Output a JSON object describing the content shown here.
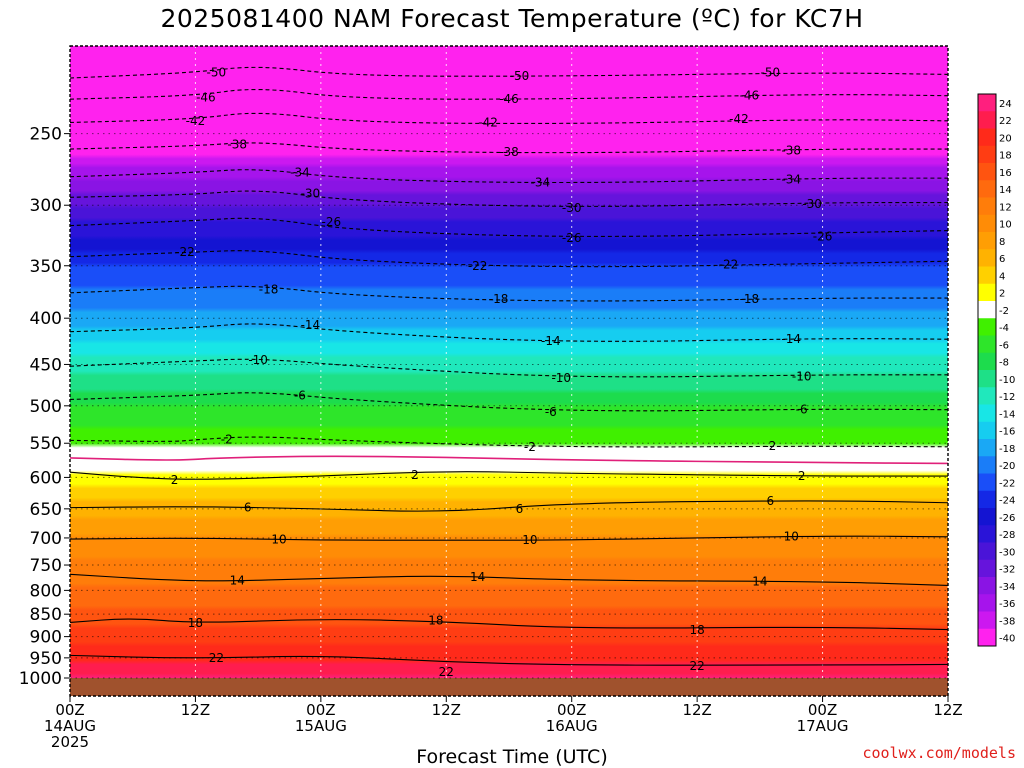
{
  "chart_data": {
    "type": "heatmap",
    "title": "2025081400 NAM Forecast Temperature (ºC) for KC7H",
    "xlabel": "Forecast Time (UTC)",
    "ylabel": "",
    "credit": "coolwx.com/models",
    "x_hours_range": [
      0,
      84
    ],
    "y_pressure_range": [
      1000,
      200
    ],
    "x_ticks": [
      {
        "hour": 0,
        "lines": [
          "00Z",
          "14AUG",
          "2025"
        ]
      },
      {
        "hour": 12,
        "lines": [
          "12Z"
        ]
      },
      {
        "hour": 24,
        "lines": [
          "00Z",
          "15AUG"
        ]
      },
      {
        "hour": 36,
        "lines": [
          "12Z"
        ]
      },
      {
        "hour": 48,
        "lines": [
          "00Z",
          "16AUG"
        ]
      },
      {
        "hour": 60,
        "lines": [
          "12Z"
        ]
      },
      {
        "hour": 72,
        "lines": [
          "00Z",
          "17AUG"
        ]
      },
      {
        "hour": 84,
        "lines": [
          "12Z"
        ]
      }
    ],
    "y_ticks": [
      250,
      300,
      350,
      400,
      450,
      500,
      550,
      600,
      650,
      700,
      750,
      800,
      850,
      900,
      950,
      1000
    ],
    "colorbar_levels": [
      "24",
      "22",
      "20",
      "18",
      "16",
      "14",
      "12",
      "10",
      "8",
      "6",
      "4",
      "2",
      "-2",
      "-4",
      "-6",
      "-8",
      "-10",
      "-12",
      "-14",
      "-16",
      "-18",
      "-20",
      "-22",
      "-24",
      "-26",
      "-28",
      "-30",
      "-32",
      "-34",
      "-36",
      "-38",
      "-40"
    ],
    "colorbar_colors": [
      "#ff1f7e",
      "#ff1d4e",
      "#ff2a1a",
      "#ff3d13",
      "#ff5410",
      "#ff6a0e",
      "#ff7d0a",
      "#ff8c06",
      "#ff9e04",
      "#ffb201",
      "#ffd000",
      "#ffff00",
      "#ffffff",
      "#40f000",
      "#2ee52a",
      "#1ddc4d",
      "#1ee087",
      "#20e8bc",
      "#18e6e6",
      "#16cdf0",
      "#1aa8f5",
      "#1a7df8",
      "#1a4ef8",
      "#1428e6",
      "#1414d2",
      "#2a14d8",
      "#4a14d8",
      "#6614dc",
      "#8a14e4",
      "#a614ec",
      "#cc18f0",
      "#ff22ee"
    ],
    "temperature_profile_first_hour": [
      {
        "p": 1000,
        "t": 24.5
      },
      {
        "p": 950,
        "t": 21.5
      },
      {
        "p": 900,
        "t": 19
      },
      {
        "p": 850,
        "t": 16.5
      },
      {
        "p": 800,
        "t": 14.5
      },
      {
        "p": 750,
        "t": 12.5
      },
      {
        "p": 700,
        "t": 10
      },
      {
        "p": 650,
        "t": 7
      },
      {
        "p": 600,
        "t": 3
      },
      {
        "p": 550,
        "t": -2.5
      },
      {
        "p": 500,
        "t": -6
      },
      {
        "p": 450,
        "t": -11
      },
      {
        "p": 400,
        "t": -17
      },
      {
        "p": 350,
        "t": -22
      },
      {
        "p": 300,
        "t": -30
      },
      {
        "p": 250,
        "t": -41
      },
      {
        "p": 200,
        "t": -52
      }
    ],
    "contours": [
      {
        "value": -50,
        "label": "50",
        "pts": [
          [
            0,
            217
          ],
          [
            12,
            214
          ],
          [
            18,
            210
          ],
          [
            27,
            216
          ],
          [
            48,
            216
          ],
          [
            72,
            214
          ],
          [
            84,
            215
          ]
        ],
        "labels": [
          [
            14,
            214
          ],
          [
            43,
            216
          ],
          [
            67,
            214
          ]
        ]
      },
      {
        "value": -46,
        "label": "46",
        "pts": [
          [
            0,
            229
          ],
          [
            12,
            227
          ],
          [
            18,
            222
          ],
          [
            27,
            229
          ],
          [
            48,
            229
          ],
          [
            72,
            226
          ],
          [
            84,
            227
          ]
        ],
        "labels": [
          [
            13,
            228
          ],
          [
            42,
            229
          ],
          [
            65,
            227
          ]
        ]
      },
      {
        "value": -42,
        "label": "42",
        "pts": [
          [
            0,
            243
          ],
          [
            12,
            241
          ],
          [
            18,
            236
          ],
          [
            27,
            243
          ],
          [
            48,
            244
          ],
          [
            72,
            241
          ],
          [
            84,
            242
          ]
        ],
        "labels": [
          [
            12,
            242
          ],
          [
            40,
            243
          ],
          [
            64,
            241
          ]
        ]
      },
      {
        "value": -38,
        "label": "38",
        "pts": [
          [
            0,
            260
          ],
          [
            12,
            258
          ],
          [
            18,
            255
          ],
          [
            27,
            261
          ],
          [
            48,
            263
          ],
          [
            72,
            260
          ],
          [
            84,
            260
          ]
        ],
        "labels": [
          [
            16,
            257
          ],
          [
            42,
            262
          ],
          [
            69,
            261
          ]
        ]
      },
      {
        "value": -34,
        "label": "34",
        "pts": [
          [
            0,
            279
          ],
          [
            12,
            276
          ],
          [
            18,
            273
          ],
          [
            27,
            281
          ],
          [
            48,
            284
          ],
          [
            72,
            280
          ],
          [
            84,
            280
          ]
        ],
        "labels": [
          [
            22,
            276
          ],
          [
            45,
            283
          ],
          [
            69,
            281
          ]
        ]
      },
      {
        "value": -30,
        "label": "30",
        "pts": [
          [
            0,
            294
          ],
          [
            12,
            292
          ],
          [
            18,
            288
          ],
          [
            27,
            297
          ],
          [
            48,
            302
          ],
          [
            72,
            298
          ],
          [
            84,
            298
          ]
        ],
        "labels": [
          [
            23,
            291
          ],
          [
            48,
            302
          ],
          [
            71,
            299
          ]
        ]
      },
      {
        "value": -26,
        "label": "26",
        "pts": [
          [
            0,
            316
          ],
          [
            12,
            312
          ],
          [
            18,
            309
          ],
          [
            27,
            320
          ],
          [
            48,
            326
          ],
          [
            72,
            322
          ],
          [
            84,
            320
          ]
        ],
        "labels": [
          [
            25,
            313
          ],
          [
            48,
            326
          ],
          [
            72,
            325
          ]
        ]
      },
      {
        "value": -22,
        "label": "22",
        "pts": [
          [
            0,
            342
          ],
          [
            12,
            338
          ],
          [
            18,
            336
          ],
          [
            27,
            346
          ],
          [
            48,
            352
          ],
          [
            72,
            348
          ],
          [
            84,
            346
          ]
        ],
        "labels": [
          [
            11,
            338
          ],
          [
            39,
            350
          ],
          [
            63,
            349
          ]
        ]
      },
      {
        "value": -18,
        "label": "18",
        "pts": [
          [
            0,
            375
          ],
          [
            12,
            370
          ],
          [
            18,
            368
          ],
          [
            27,
            378
          ],
          [
            48,
            384
          ],
          [
            72,
            380
          ],
          [
            84,
            380
          ]
        ],
        "labels": [
          [
            19,
            372
          ],
          [
            41,
            381
          ],
          [
            65,
            381
          ]
        ]
      },
      {
        "value": -14,
        "label": "14",
        "pts": [
          [
            0,
            414
          ],
          [
            12,
            410
          ],
          [
            18,
            404
          ],
          [
            27,
            415
          ],
          [
            48,
            426
          ],
          [
            72,
            421
          ],
          [
            84,
            422
          ]
        ],
        "labels": [
          [
            23,
            407
          ],
          [
            46,
            424
          ],
          [
            69,
            422
          ]
        ]
      },
      {
        "value": -10,
        "label": "10",
        "pts": [
          [
            0,
            452
          ],
          [
            12,
            446
          ],
          [
            18,
            443
          ],
          [
            27,
            452
          ],
          [
            48,
            466
          ],
          [
            72,
            462
          ],
          [
            84,
            462
          ]
        ],
        "labels": [
          [
            18,
            445
          ],
          [
            47,
            466
          ],
          [
            70,
            464
          ]
        ]
      },
      {
        "value": -6,
        "label": "6",
        "pts": [
          [
            0,
            492
          ],
          [
            12,
            487
          ],
          [
            18,
            482
          ],
          [
            27,
            493
          ],
          [
            48,
            508
          ],
          [
            72,
            504
          ],
          [
            84,
            505
          ]
        ],
        "labels": [
          [
            22,
            487
          ],
          [
            46,
            508
          ],
          [
            70,
            505
          ]
        ]
      },
      {
        "value": -2,
        "label": "2",
        "pts": [
          [
            0,
            546
          ],
          [
            10,
            548
          ],
          [
            12,
            545
          ],
          [
            18,
            540
          ],
          [
            27,
            547
          ],
          [
            48,
            556
          ],
          [
            72,
            554
          ],
          [
            84,
            555
          ]
        ],
        "labels": [
          [
            15,
            545
          ],
          [
            44,
            555
          ],
          [
            67,
            554
          ]
        ]
      },
      {
        "value": 0,
        "label": "",
        "pts": [
          [
            0,
            571
          ],
          [
            10,
            575
          ],
          [
            14,
            571
          ],
          [
            24,
            568
          ],
          [
            36,
            570
          ],
          [
            48,
            574
          ],
          [
            72,
            578
          ],
          [
            84,
            579
          ]
        ],
        "labels": []
      },
      {
        "value": 2,
        "label": "2",
        "pts": [
          [
            0,
            592
          ],
          [
            6,
            600
          ],
          [
            12,
            604
          ],
          [
            24,
            598
          ],
          [
            36,
            590
          ],
          [
            48,
            594
          ],
          [
            72,
            598
          ],
          [
            84,
            598
          ]
        ],
        "labels": [
          [
            10,
            604
          ],
          [
            33,
            596
          ],
          [
            70,
            598
          ]
        ]
      },
      {
        "value": 6,
        "label": "6",
        "pts": [
          [
            0,
            648
          ],
          [
            12,
            646
          ],
          [
            24,
            650
          ],
          [
            36,
            656
          ],
          [
            48,
            640
          ],
          [
            72,
            636
          ],
          [
            84,
            640
          ]
        ],
        "labels": [
          [
            17,
            648
          ],
          [
            43,
            650
          ],
          [
            67,
            637
          ]
        ]
      },
      {
        "value": 10,
        "label": "10",
        "pts": [
          [
            0,
            702
          ],
          [
            12,
            700
          ],
          [
            24,
            704
          ],
          [
            36,
            704
          ],
          [
            48,
            704
          ],
          [
            72,
            696
          ],
          [
            84,
            698
          ]
        ],
        "labels": [
          [
            20,
            703
          ],
          [
            44,
            704
          ],
          [
            69,
            697
          ]
        ]
      },
      {
        "value": 14,
        "label": "14",
        "pts": [
          [
            0,
            768
          ],
          [
            8,
            778
          ],
          [
            14,
            782
          ],
          [
            24,
            776
          ],
          [
            36,
            770
          ],
          [
            48,
            780
          ],
          [
            72,
            782
          ],
          [
            84,
            790
          ]
        ],
        "labels": [
          [
            16,
            780
          ],
          [
            39,
            773
          ],
          [
            66,
            782
          ]
        ]
      },
      {
        "value": 18,
        "label": "18",
        "pts": [
          [
            0,
            868
          ],
          [
            6,
            858
          ],
          [
            12,
            870
          ],
          [
            24,
            860
          ],
          [
            36,
            866
          ],
          [
            48,
            882
          ],
          [
            72,
            878
          ],
          [
            84,
            884
          ]
        ],
        "labels": [
          [
            12,
            869
          ],
          [
            35,
            864
          ],
          [
            60,
            885
          ]
        ]
      },
      {
        "value": 22,
        "label": "22",
        "pts": [
          [
            0,
            944
          ],
          [
            12,
            952
          ],
          [
            24,
            944
          ],
          [
            36,
            960
          ],
          [
            48,
            968
          ],
          [
            72,
            968
          ],
          [
            84,
            966
          ]
        ],
        "labels": [
          [
            14,
            950
          ],
          [
            36,
            985
          ],
          [
            60,
            970
          ]
        ]
      }
    ]
  }
}
